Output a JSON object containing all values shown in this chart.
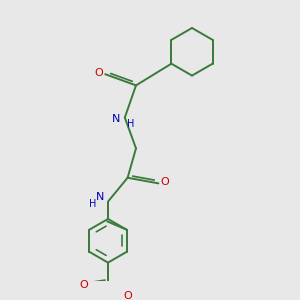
{
  "background_color": "#e8e8e8",
  "bond_color": "#3a7a3a",
  "N_color": "#0000bb",
  "O_color": "#cc0000",
  "lw": 1.4,
  "xlim": [
    0,
    10
  ],
  "ylim": [
    0,
    10
  ]
}
